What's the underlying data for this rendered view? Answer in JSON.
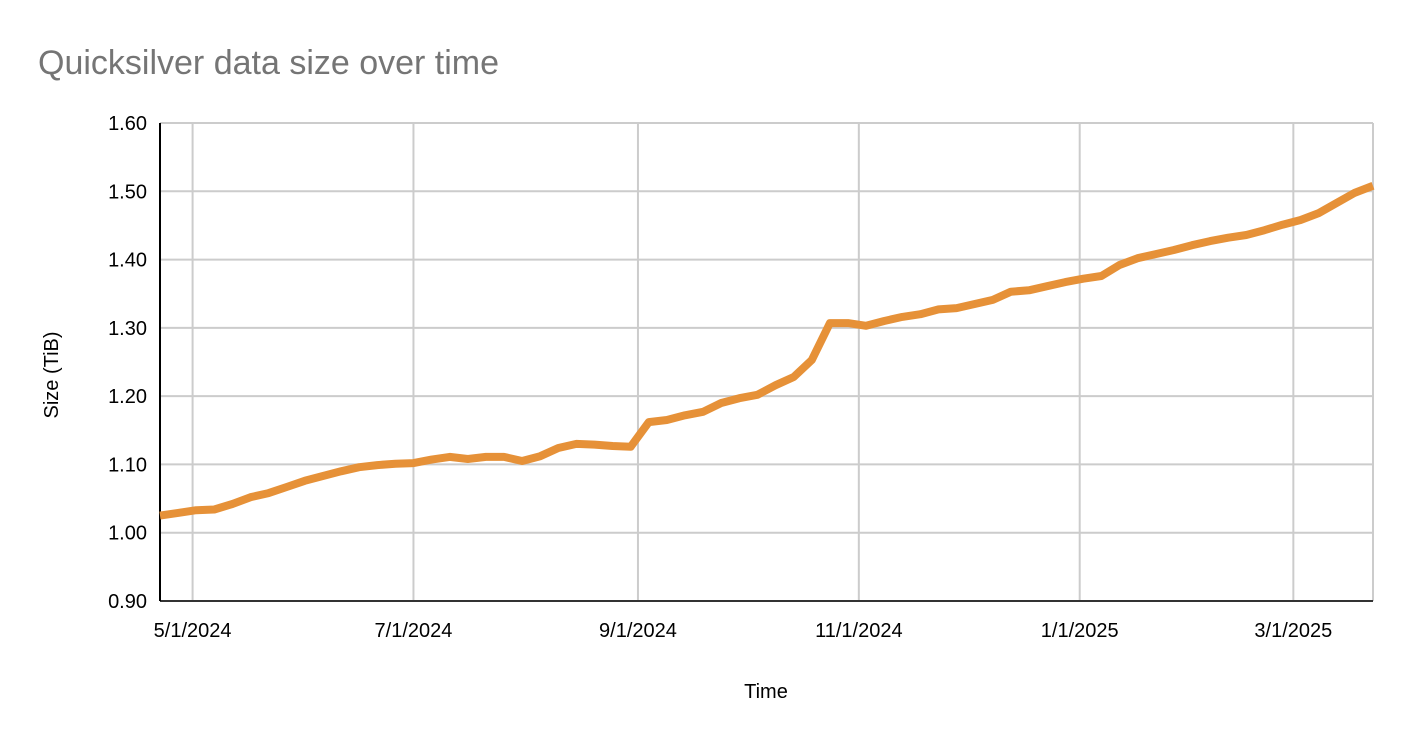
{
  "chart_data": {
    "type": "line",
    "title": "Quicksilver data size over time",
    "xlabel": "Time",
    "ylabel": "Size (TiB)",
    "ylim": [
      0.9,
      1.6
    ],
    "yticks": [
      "0.90",
      "1.00",
      "1.10",
      "1.20",
      "1.30",
      "1.40",
      "1.50",
      "1.60"
    ],
    "xlim": [
      "2024-04-22",
      "2025-03-23"
    ],
    "xticks": [
      {
        "date": "2024-05-01",
        "label": "5/1/2024"
      },
      {
        "date": "2024-07-01",
        "label": "7/1/2024"
      },
      {
        "date": "2024-09-01",
        "label": "9/1/2024"
      },
      {
        "date": "2024-11-01",
        "label": "11/1/2024"
      },
      {
        "date": "2025-01-01",
        "label": "1/1/2025"
      },
      {
        "date": "2025-03-01",
        "label": "3/1/2025"
      }
    ],
    "grid": true,
    "legend": "none",
    "series": [
      {
        "color": "#e69138",
        "x": [
          "2024-04-22",
          "2024-04-27",
          "2024-05-02",
          "2024-05-07",
          "2024-05-12",
          "2024-05-17",
          "2024-05-22",
          "2024-05-27",
          "2024-06-01",
          "2024-06-06",
          "2024-06-11",
          "2024-06-16",
          "2024-06-21",
          "2024-06-26",
          "2024-07-01",
          "2024-07-06",
          "2024-07-11",
          "2024-07-16",
          "2024-07-21",
          "2024-07-26",
          "2024-07-31",
          "2024-08-05",
          "2024-08-10",
          "2024-08-15",
          "2024-08-20",
          "2024-08-25",
          "2024-08-30",
          "2024-09-04",
          "2024-09-09",
          "2024-09-14",
          "2024-09-19",
          "2024-09-24",
          "2024-09-29",
          "2024-10-04",
          "2024-10-09",
          "2024-10-14",
          "2024-10-19",
          "2024-10-24",
          "2024-10-29",
          "2024-11-03",
          "2024-11-08",
          "2024-11-13",
          "2024-11-18",
          "2024-11-23",
          "2024-11-28",
          "2024-12-03",
          "2024-12-08",
          "2024-12-13",
          "2024-12-18",
          "2024-12-23",
          "2024-12-28",
          "2025-01-02",
          "2025-01-07",
          "2025-01-12",
          "2025-01-17",
          "2025-01-22",
          "2025-01-27",
          "2025-02-01",
          "2025-02-06",
          "2025-02-11",
          "2025-02-16",
          "2025-02-21",
          "2025-02-26",
          "2025-03-03",
          "2025-03-08",
          "2025-03-13",
          "2025-03-18",
          "2025-03-23"
        ],
        "y": [
          1.025,
          1.029,
          1.033,
          1.034,
          1.042,
          1.052,
          1.058,
          1.067,
          1.076,
          1.083,
          1.09,
          1.096,
          1.099,
          1.101,
          1.102,
          1.107,
          1.111,
          1.108,
          1.111,
          1.111,
          1.105,
          1.112,
          1.124,
          1.13,
          1.129,
          1.127,
          1.126,
          1.162,
          1.165,
          1.172,
          1.177,
          1.19,
          1.197,
          1.202,
          1.216,
          1.228,
          1.253,
          1.307,
          1.307,
          1.303,
          1.31,
          1.316,
          1.32,
          1.327,
          1.329,
          1.335,
          1.341,
          1.353,
          1.355,
          1.361,
          1.367,
          1.372,
          1.376,
          1.392,
          1.402,
          1.408,
          1.414,
          1.421,
          1.427,
          1.432,
          1.436,
          1.443,
          1.451,
          1.458,
          1.468,
          1.483,
          1.498,
          1.508
        ]
      }
    ]
  }
}
